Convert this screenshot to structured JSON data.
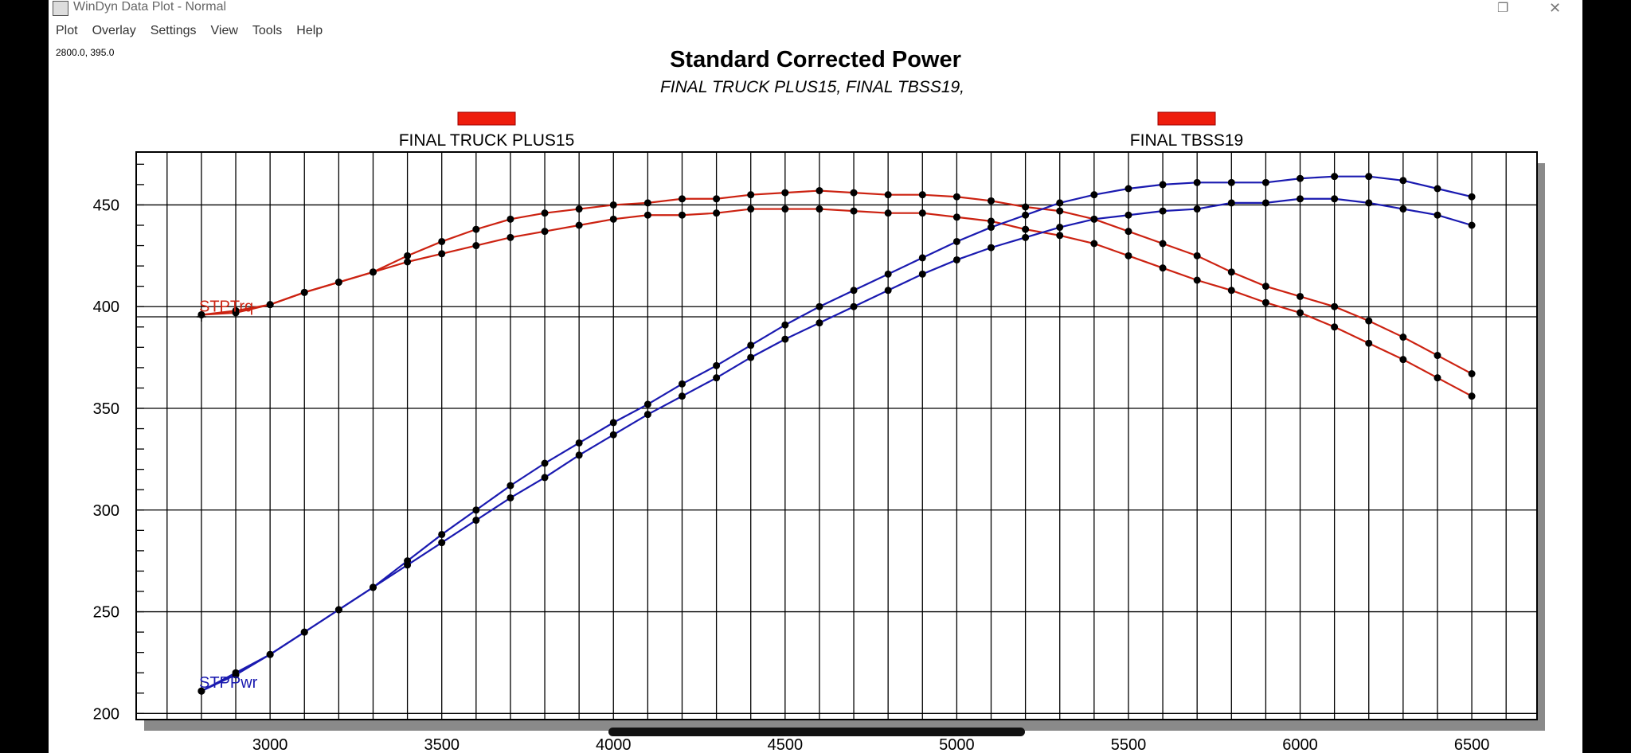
{
  "window": {
    "title": "WinDyn Data Plot - Normal"
  },
  "menu": [
    "Plot",
    "Overlay",
    "Settings",
    "View",
    "Tools",
    "Help"
  ],
  "cursor_readout": "2800.0, 395.0",
  "chart_data": {
    "type": "line",
    "title": "Standard Corrected Power",
    "subtitle": "FINAL TRUCK PLUS15, FINAL TBSS19,",
    "legend": [
      {
        "label": "FINAL TRUCK PLUS15",
        "color": "#ee1c0c"
      },
      {
        "label": "FINAL TBSS19",
        "color": "#ee1c0c"
      }
    ],
    "series_labels": {
      "torque": "STPTrq",
      "power": "STPPwr"
    },
    "colors": {
      "torque": "#cc2211",
      "power": "#1a1ab0",
      "marker": "#000000"
    },
    "xlim": [
      2610,
      6690
    ],
    "ylim": [
      197,
      476
    ],
    "x_ticks": [
      3000,
      3500,
      4000,
      4500,
      5000,
      5500,
      6000,
      6500
    ],
    "y_ticks": [
      200,
      250,
      300,
      350,
      400,
      450
    ],
    "cursor": {
      "x": 2800,
      "y": 395
    },
    "grid": true,
    "x": [
      2800,
      2900,
      3000,
      3100,
      3200,
      3300,
      3400,
      3500,
      3600,
      3700,
      3800,
      3900,
      4000,
      4100,
      4200,
      4300,
      4400,
      4500,
      4600,
      4700,
      4800,
      4900,
      5000,
      5100,
      5200,
      5300,
      5400,
      5500,
      5600,
      5700,
      5800,
      5900,
      6000,
      6100,
      6200,
      6300,
      6400,
      6500
    ],
    "series": [
      {
        "quantity": "torque",
        "values": [
          396,
          398,
          401,
          407,
          412,
          417,
          425,
          432,
          438,
          443,
          446,
          448,
          450,
          451,
          453,
          453,
          455,
          456,
          457,
          456,
          455,
          455,
          454,
          452,
          449,
          447,
          443,
          437,
          431,
          425,
          417,
          410,
          405,
          400,
          393,
          385,
          376,
          367
        ]
      },
      {
        "quantity": "torque",
        "values": [
          396,
          397,
          401,
          407,
          412,
          417,
          422,
          426,
          430,
          434,
          437,
          440,
          443,
          445,
          445,
          446,
          448,
          448,
          448,
          447,
          446,
          446,
          444,
          442,
          438,
          435,
          431,
          425,
          419,
          413,
          408,
          402,
          397,
          390,
          382,
          374,
          365,
          356
        ]
      },
      {
        "quantity": "power",
        "values": [
          211,
          220,
          229,
          240,
          251,
          262,
          275,
          288,
          300,
          312,
          323,
          333,
          343,
          352,
          362,
          371,
          381,
          391,
          400,
          408,
          416,
          424,
          432,
          439,
          445,
          451,
          455,
          458,
          460,
          461,
          461,
          461,
          463,
          464,
          464,
          462,
          458,
          454
        ]
      },
      {
        "quantity": "power",
        "values": [
          211,
          219,
          229,
          240,
          251,
          262,
          273,
          284,
          295,
          306,
          316,
          327,
          337,
          347,
          356,
          365,
          375,
          384,
          392,
          400,
          408,
          416,
          423,
          429,
          434,
          439,
          443,
          445,
          447,
          448,
          451,
          451,
          453,
          453,
          451,
          448,
          445,
          440
        ]
      }
    ]
  }
}
